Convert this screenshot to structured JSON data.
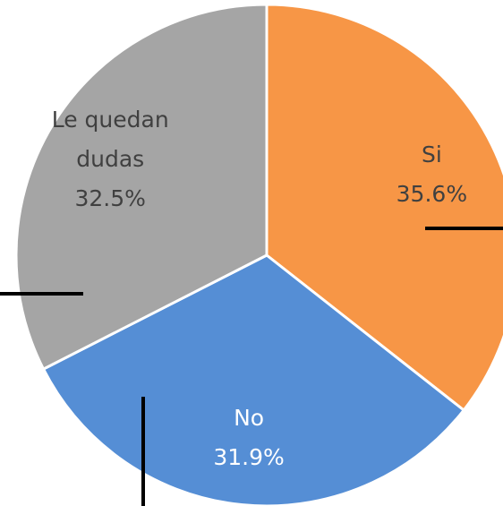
{
  "chart_data": {
    "type": "pie",
    "categories": [
      "Si",
      "No",
      "Le quedan dudas"
    ],
    "values": [
      35.6,
      31.9,
      32.5
    ],
    "value_labels": [
      "35.6%",
      "31.9%",
      "32.5%"
    ],
    "colors": [
      "#f79646",
      "#558ed5",
      "#a5a5a5"
    ],
    "label_colors": [
      "#404040",
      "#ffffff",
      "#404040"
    ]
  }
}
